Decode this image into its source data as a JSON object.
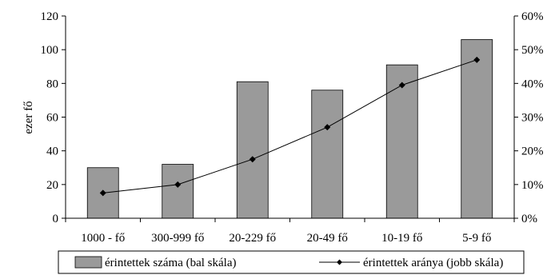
{
  "chart_data": {
    "type": "bar",
    "categories": [
      "1000 - fő",
      "300-999 fő",
      "20-229 fő",
      "20-49 fő",
      "10-19 fő",
      "5-9 fő"
    ],
    "series": [
      {
        "name": "érintettek száma (bal skála)",
        "type": "bar",
        "axis": "left",
        "color": "#9a9a9a",
        "values": [
          30,
          32,
          81,
          76,
          91,
          106
        ]
      },
      {
        "name": "érintettek aránya (jobb skála)",
        "type": "line",
        "axis": "right",
        "marker": "diamond",
        "color": "#000000",
        "values": [
          7.5,
          10,
          17.5,
          27,
          39.5,
          47
        ]
      }
    ],
    "ylabel": "ezer fő",
    "y_left": {
      "ylim": [
        0,
        120
      ],
      "ticks": [
        "0",
        "20",
        "40",
        "60",
        "80",
        "100",
        "120"
      ]
    },
    "y_right": {
      "ylim": [
        0,
        60
      ],
      "unit": "%",
      "ticks": [
        "0%",
        "10%",
        "20%",
        "30%",
        "40%",
        "50%",
        "60%"
      ]
    },
    "grid": false,
    "legend_position": "bottom"
  }
}
